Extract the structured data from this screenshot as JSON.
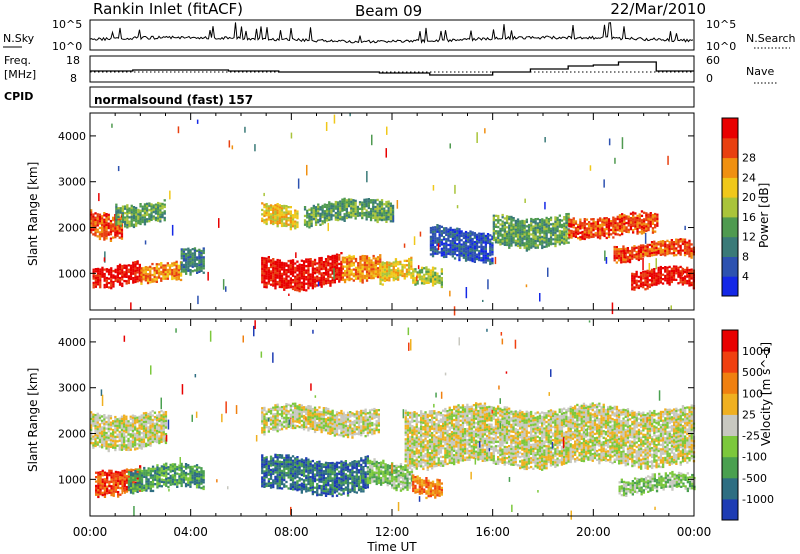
{
  "header": {
    "station": "Rankin Inlet (fitACF)",
    "beam": "Beam 09",
    "date": "22/Mar/2010"
  },
  "nsky_panel": {
    "left_label": "N.Sky",
    "left_ticks": [
      "10^5",
      "10^0"
    ],
    "right_ticks": [
      "10^5",
      "10^0"
    ],
    "right_label": "N.Search"
  },
  "freq_panel": {
    "left_label_1": "Freq.",
    "left_label_2": "[MHz]",
    "left_ticks": [
      "18",
      "8"
    ],
    "right_ticks": [
      "60",
      "0"
    ],
    "right_label": "Nave"
  },
  "cpid": {
    "label": "CPID",
    "value": "normalsound (fast) 157"
  },
  "chart_data": [
    {
      "type": "heatmap",
      "quantity": "Power",
      "ylabel": "Slant Range [km]",
      "xlabel": "",
      "ylim": [
        200,
        4500
      ],
      "yticks": [
        "1000",
        "2000",
        "3000",
        "4000"
      ],
      "x_ticks": [
        "00:00",
        "04:00",
        "08:00",
        "12:00",
        "16:00",
        "20:00",
        "00:00"
      ],
      "colorbar": {
        "label": "Power [dB]",
        "ticks": [
          "4",
          "8",
          "12",
          "16",
          "20",
          "24",
          "28"
        ],
        "colors": [
          "#1428e6",
          "#2d52b0",
          "#3a7a78",
          "#4f9a50",
          "#a9c43a",
          "#f0c81a",
          "#f09010",
          "#e84010",
          "#e80000"
        ]
      },
      "regions": [
        {
          "t0": 0.0,
          "t1": 1.3,
          "r0": 1800,
          "r1": 2400,
          "c": 7
        },
        {
          "t0": 1.0,
          "t1": 3.0,
          "r0": 2100,
          "r1": 2600,
          "c": 3
        },
        {
          "t0": 0.1,
          "t1": 2.0,
          "r0": 700,
          "r1": 1200,
          "c": 8
        },
        {
          "t0": 2.0,
          "t1": 3.6,
          "r0": 750,
          "r1": 1200,
          "c": 6
        },
        {
          "t0": 3.6,
          "t1": 4.5,
          "r0": 900,
          "r1": 1500,
          "c": 2
        },
        {
          "t0": 6.8,
          "t1": 8.2,
          "r0": 2000,
          "r1": 2500,
          "c": 5
        },
        {
          "t0": 6.8,
          "t1": 10.0,
          "r0": 700,
          "r1": 1400,
          "c": 8
        },
        {
          "t0": 10.0,
          "t1": 11.5,
          "r0": 900,
          "r1": 1500,
          "c": 6
        },
        {
          "t0": 8.5,
          "t1": 12.0,
          "r0": 2100,
          "r1": 2600,
          "c": 3
        },
        {
          "t0": 11.5,
          "t1": 12.8,
          "r0": 800,
          "r1": 1300,
          "c": 5
        },
        {
          "t0": 12.8,
          "t1": 14.0,
          "r0": 650,
          "r1": 1100,
          "c": 4
        },
        {
          "t0": 13.5,
          "t1": 16.0,
          "r0": 1300,
          "r1": 2000,
          "c": 1
        },
        {
          "t0": 16.0,
          "t1": 19.0,
          "r0": 1600,
          "r1": 2300,
          "c": 3
        },
        {
          "t0": 19.0,
          "t1": 22.5,
          "r0": 1800,
          "r1": 2300,
          "c": 7
        },
        {
          "t0": 20.8,
          "t1": 24.0,
          "r0": 1300,
          "r1": 1700,
          "c": 7
        },
        {
          "t0": 21.5,
          "t1": 24.0,
          "r0": 650,
          "r1": 1100,
          "c": 8
        }
      ]
    },
    {
      "type": "heatmap",
      "quantity": "Velocity",
      "ylabel": "Slant Range [km]",
      "xlabel": "Time UT",
      "ylim": [
        200,
        4500
      ],
      "yticks": [
        "1000",
        "2000",
        "3000",
        "4000"
      ],
      "x_ticks": [
        "00:00",
        "04:00",
        "08:00",
        "12:00",
        "16:00",
        "20:00",
        "00:00"
      ],
      "colorbar": {
        "label": "Velocity [m s^-1]",
        "ticks": [
          "1000",
          "500",
          "100",
          "25",
          "-25",
          "-100",
          "-500",
          "-1000"
        ],
        "colors": [
          "#1e3cb4",
          "#2e6e82",
          "#4aa050",
          "#7cc83c",
          "#c8c8c0",
          "#f0b020",
          "#f08010",
          "#f04010",
          "#e80000"
        ]
      },
      "regions": [
        {
          "t0": 0.0,
          "t1": 3.0,
          "r0": 1700,
          "r1": 2500,
          "c": 4
        },
        {
          "t0": 0.2,
          "t1": 2.0,
          "r0": 700,
          "r1": 1300,
          "c": 7
        },
        {
          "t0": 1.5,
          "t1": 4.5,
          "r0": 750,
          "r1": 1300,
          "c": 2
        },
        {
          "t0": 6.8,
          "t1": 11.5,
          "r0": 2000,
          "r1": 2600,
          "c": 4
        },
        {
          "t0": 6.8,
          "t1": 11.0,
          "r0": 700,
          "r1": 1500,
          "c": 1
        },
        {
          "t0": 11.0,
          "t1": 12.8,
          "r0": 800,
          "r1": 1400,
          "c": 3
        },
        {
          "t0": 12.8,
          "t1": 14.0,
          "r0": 650,
          "r1": 1100,
          "c": 6
        },
        {
          "t0": 12.5,
          "t1": 24.0,
          "r0": 1300,
          "r1": 2600,
          "c": 4
        },
        {
          "t0": 21.0,
          "t1": 24.0,
          "r0": 700,
          "r1": 1100,
          "c": 3
        }
      ]
    }
  ]
}
